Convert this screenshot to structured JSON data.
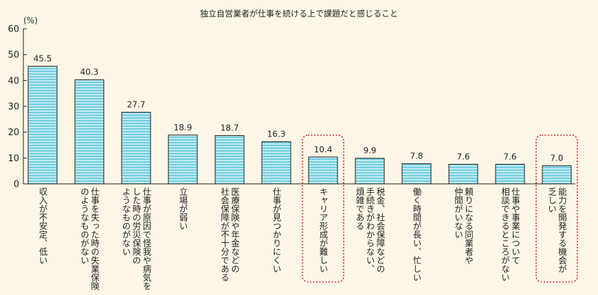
{
  "chart_data": {
    "type": "bar",
    "title": "独立自営業者が仕事を続ける上で課題だと感じること",
    "unit": "(%)",
    "ylim": [
      0,
      60
    ],
    "yticks": [
      0,
      10,
      20,
      30,
      40,
      50,
      60
    ],
    "grid": false,
    "legend": "none",
    "categories": [
      [
        "収入が不安定、低い"
      ],
      [
        "仕事を失った時の失業保険",
        "のようなものがない"
      ],
      [
        "仕事が原因で怪我や病気を",
        "した時の労災保険の",
        "ようなものがない"
      ],
      [
        "立場が弱い"
      ],
      [
        "医療保険や年金などの",
        "社会保障が不十分である"
      ],
      [
        "仕事が見つかりにくい"
      ],
      [
        "キャリア形成が難しい"
      ],
      [
        "税金、社会保障などの",
        "手続きがわからない、",
        "煩雑である"
      ],
      [
        "働く時間が長い、忙しい"
      ],
      [
        "頼りになる同業者や",
        "仲間がいない"
      ],
      [
        "仕事や事業について",
        "相談できるところがない"
      ],
      [
        "能力を開発する機会が",
        "乏しい"
      ]
    ],
    "values": [
      45.5,
      40.3,
      27.7,
      18.9,
      18.7,
      16.3,
      10.4,
      9.9,
      7.8,
      7.6,
      7.6,
      7.0
    ],
    "value_labels": [
      "45.5",
      "40.3",
      "27.7",
      "18.9",
      "18.7",
      "16.3",
      "10.4",
      "9.9",
      "7.8",
      "7.6",
      "7.6",
      "7.0"
    ],
    "highlighted": [
      6,
      11
    ],
    "colors": {
      "bar_fill": "#5cc8dc",
      "bar_pattern": "#ffffff",
      "bar_stroke": "#1a1a1a",
      "axis": "#1a1a1a",
      "highlight": "#e0202a"
    }
  }
}
